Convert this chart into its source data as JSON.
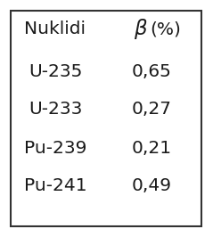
{
  "header_col1": "Nuklidi",
  "header_col2": "β(%)",
  "rows": [
    [
      "U-235",
      "0,65"
    ],
    [
      "U-233",
      "0,27"
    ],
    [
      "Pu-239",
      "0,21"
    ],
    [
      "Pu-241",
      "0,49"
    ]
  ],
  "bg_color": "#ffffff",
  "text_color": "#1a1a1a",
  "border_color": "#333333",
  "font_size": 14.5,
  "fig_width": 2.39,
  "fig_height": 2.66,
  "dpi": 100
}
